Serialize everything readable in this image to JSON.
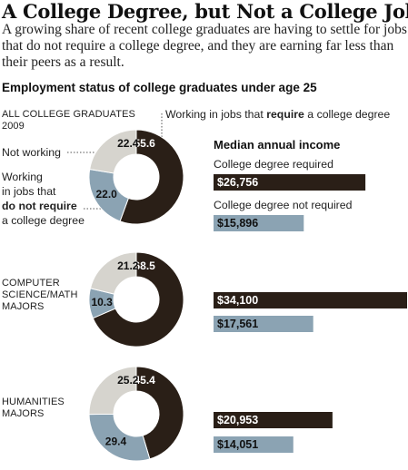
{
  "headline": "A College Degree, but Not a College Job",
  "intro": "A growing share of recent college graduates are having to settle for jobs that do not require a college degree, and they are earning far less than their peers as a result.",
  "subhead": "Employment status of college graduates under age 25",
  "labels": {
    "not_working": "Not working",
    "requires_prefix": "Working in jobs that ",
    "requires_bold": "require",
    "requires_suffix": " a college degree",
    "not_require_line1": "Working",
    "not_require_line2": "in jobs that",
    "not_require_bold": "do not require",
    "not_require_line4": "a college degree"
  },
  "median": {
    "title": "Median annual income",
    "required_label": "College degree required",
    "not_required_label": "College degree not required"
  },
  "colors": {
    "required": "#2a1f17",
    "not_required": "#8ba3b3",
    "not_working": "#d6d4ce"
  },
  "groups": [
    {
      "name_lines": [
        "ALL COLLEGE GRADUATES",
        "2009"
      ],
      "required": "55.6",
      "not_required": "22.0",
      "not_working": "22.4",
      "income_required": "$26,756",
      "income_not_required": "$15,896"
    },
    {
      "name_lines": [
        "COMPUTER",
        "SCIENCE/MATH",
        "MAJORS"
      ],
      "required": "68.5",
      "not_required": "10.3",
      "not_working": "21.2",
      "income_required": "$34,100",
      "income_not_required": "$17,561"
    },
    {
      "name_lines": [
        "HUMANITIES",
        "MAJORS"
      ],
      "required": "45.4",
      "not_required": "29.4",
      "not_working": "25.2",
      "income_required": "$20,953",
      "income_not_required": "$14,051"
    }
  ],
  "chart_data": [
    {
      "type": "pie",
      "title": "ALL COLLEGE GRADUATES 2009",
      "categories": [
        "Working in jobs that require a college degree",
        "Working in jobs that do not require a college degree",
        "Not working"
      ],
      "values": [
        55.6,
        22.0,
        22.4
      ]
    },
    {
      "type": "pie",
      "title": "COMPUTER SCIENCE/MATH MAJORS",
      "categories": [
        "Working in jobs that require a college degree",
        "Working in jobs that do not require a college degree",
        "Not working"
      ],
      "values": [
        68.5,
        10.3,
        21.2
      ]
    },
    {
      "type": "pie",
      "title": "HUMANITIES MAJORS",
      "categories": [
        "Working in jobs that require a college degree",
        "Working in jobs that do not require a college degree",
        "Not working"
      ],
      "values": [
        45.4,
        29.4,
        25.2
      ]
    },
    {
      "type": "bar",
      "title": "Median annual income",
      "categories": [
        "ALL COLLEGE GRADUATES 2009",
        "COMPUTER SCIENCE/MATH MAJORS",
        "HUMANITIES MAJORS"
      ],
      "series": [
        {
          "name": "College degree required",
          "values": [
            26756,
            34100,
            20953
          ]
        },
        {
          "name": "College degree not required",
          "values": [
            15896,
            17561,
            14051
          ]
        }
      ]
    }
  ]
}
